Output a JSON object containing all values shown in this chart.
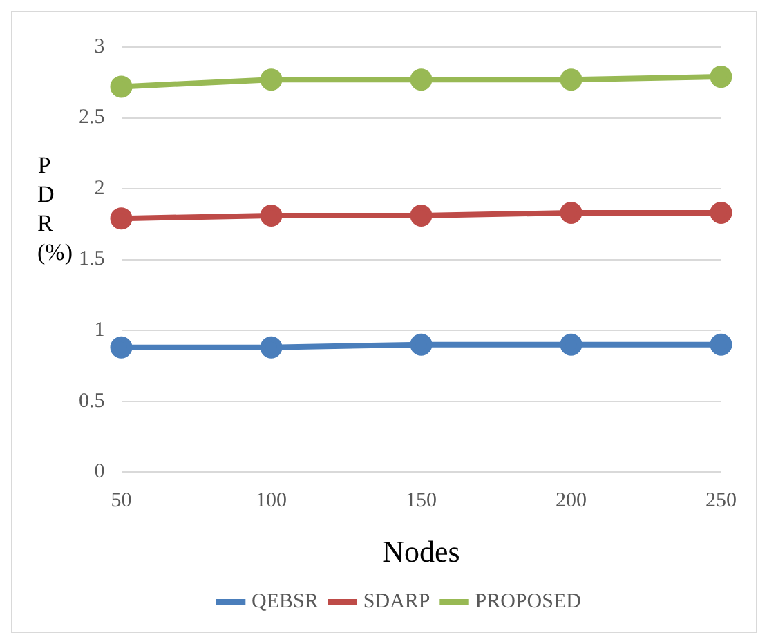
{
  "chart_data": {
    "type": "line",
    "xlabel": "Nodes",
    "ylabel": "PDR(%)",
    "categories": [
      "50",
      "100",
      "150",
      "200",
      "250"
    ],
    "series": [
      {
        "name": "QEBSR",
        "color": "#4a7ebb",
        "values": [
          0.88,
          0.88,
          0.9,
          0.9,
          0.9
        ]
      },
      {
        "name": "SDARP",
        "color": "#be4b48",
        "values": [
          1.79,
          1.81,
          1.81,
          1.83,
          1.83
        ]
      },
      {
        "name": "PROPOSED",
        "color": "#98b954",
        "values": [
          2.72,
          2.77,
          2.77,
          2.77,
          2.79
        ]
      }
    ],
    "ylim": [
      0,
      3
    ],
    "yticks": [
      0,
      0.5,
      1,
      1.5,
      2,
      2.5,
      3
    ],
    "grid": "y",
    "legend": "bottom",
    "marker": "circle",
    "line_style": "solid"
  }
}
